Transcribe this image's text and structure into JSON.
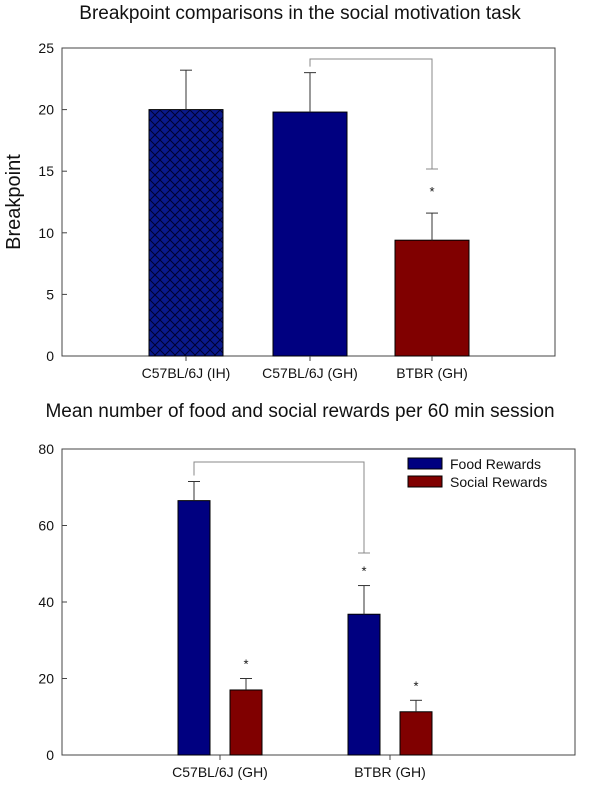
{
  "colors": {
    "food": "#000080",
    "social": "#800000",
    "ih_bar": "#0a1a8c",
    "axis": "#333333",
    "bracket": "#888888"
  },
  "chart_data": [
    {
      "type": "bar",
      "title": "Breakpoint comparisons in the social motivation task",
      "xlabel": "",
      "ylabel": "Breakpoint",
      "ylim": [
        0,
        25
      ],
      "yticks": [
        0,
        5,
        10,
        15,
        20,
        25
      ],
      "categories": [
        "C57BL/6J (IH)",
        "C57BL/6J (GH)",
        "BTBR (GH)"
      ],
      "values": [
        20.0,
        19.8,
        9.4
      ],
      "errors": [
        3.2,
        3.2,
        2.2
      ],
      "bar_colors": [
        "#000080",
        "#000080",
        "#800000"
      ],
      "bar_patterns": [
        "crosshatch",
        "solid",
        "solid"
      ],
      "significance": {
        "compare": [
          "C57BL/6J (GH)",
          "BTBR (GH)"
        ],
        "marker": "*"
      }
    },
    {
      "type": "bar",
      "title": "Mean number of food and social rewards per 60 min session",
      "xlabel": "",
      "ylabel": "",
      "ylim": [
        0,
        80
      ],
      "yticks": [
        0,
        20,
        40,
        60,
        80
      ],
      "categories": [
        "C57BL/6J (GH)",
        "BTBR (GH)"
      ],
      "series": [
        {
          "name": "Food Rewards",
          "values": [
            66.5,
            36.8
          ],
          "errors": [
            5.0,
            7.5
          ],
          "markers": [
            "",
            "*"
          ]
        },
        {
          "name": "Social Rewards",
          "values": [
            17.0,
            11.3
          ],
          "errors": [
            3.0,
            3.0
          ],
          "markers": [
            "*",
            "*"
          ]
        }
      ],
      "legend": "top-right",
      "significance": {
        "compare": [
          "C57BL/6J (GH) Food Rewards",
          "BTBR (GH) Food Rewards"
        ]
      }
    }
  ]
}
